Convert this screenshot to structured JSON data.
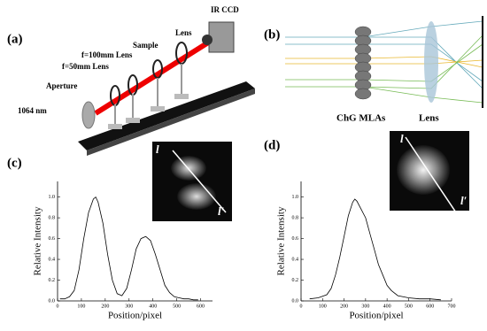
{
  "panels": [
    {
      "label": "(a)",
      "texts": [
        "IR CCD",
        "Lens",
        "Sample",
        "f=100mm Lens",
        "f=50mm Lens",
        "Aperture",
        "1064 nm"
      ]
    },
    {
      "label": "(b)",
      "texts": [
        "ChG MLAs",
        "Lens"
      ]
    }
  ],
  "chart_data": [
    {
      "type": "line",
      "panel_label": "(c)",
      "xlabel": "Position/pixel",
      "ylabel": "Relative Intensity",
      "color": "#000000",
      "x": [
        10,
        30,
        50,
        70,
        90,
        110,
        130,
        150,
        160,
        170,
        190,
        210,
        230,
        250,
        270,
        290,
        310,
        330,
        350,
        370,
        390,
        410,
        430,
        450,
        470,
        490,
        510,
        530,
        550,
        570,
        590
      ],
      "values": [
        0.02,
        0.02,
        0.04,
        0.1,
        0.3,
        0.6,
        0.85,
        0.98,
        1.0,
        0.95,
        0.75,
        0.45,
        0.2,
        0.07,
        0.05,
        0.12,
        0.3,
        0.5,
        0.6,
        0.62,
        0.58,
        0.45,
        0.3,
        0.15,
        0.08,
        0.04,
        0.03,
        0.02,
        0.02,
        0.01,
        0.01
      ],
      "xlim": [
        0,
        650
      ],
      "ylim": [
        0,
        1.15
      ],
      "xticks": [
        0,
        100,
        200,
        300,
        400,
        500,
        600
      ],
      "yticks": [
        {
          "value": 0,
          "label": "0.0"
        },
        0.2,
        0.4,
        0.6,
        0.8,
        {
          "value": 1,
          "label": "1.0"
        }
      ],
      "inset_labels": [
        "l",
        "l′"
      ]
    },
    {
      "type": "line",
      "panel_label": "(d)",
      "xlabel": "Position/pixel",
      "ylabel": "Relative Intensity",
      "color": "#000000",
      "x": [
        40,
        80,
        120,
        140,
        160,
        180,
        200,
        220,
        240,
        250,
        260,
        280,
        300,
        320,
        340,
        360,
        380,
        400,
        420,
        450,
        500,
        550,
        600,
        650
      ],
      "values": [
        0.02,
        0.03,
        0.06,
        0.12,
        0.25,
        0.42,
        0.62,
        0.82,
        0.95,
        0.98,
        0.96,
        0.88,
        0.8,
        0.65,
        0.5,
        0.35,
        0.25,
        0.15,
        0.1,
        0.05,
        0.03,
        0.02,
        0.02,
        0.01
      ],
      "xlim": [
        0,
        700
      ],
      "ylim": [
        0,
        1.15
      ],
      "xticks": [
        0,
        100,
        200,
        300,
        400,
        500,
        600,
        700
      ],
      "yticks": [
        {
          "value": 0,
          "label": "0.0"
        },
        0.2,
        0.4,
        0.6,
        0.8,
        {
          "value": 1,
          "label": "1.0"
        }
      ],
      "inset_labels": [
        "l",
        "l′"
      ]
    }
  ]
}
